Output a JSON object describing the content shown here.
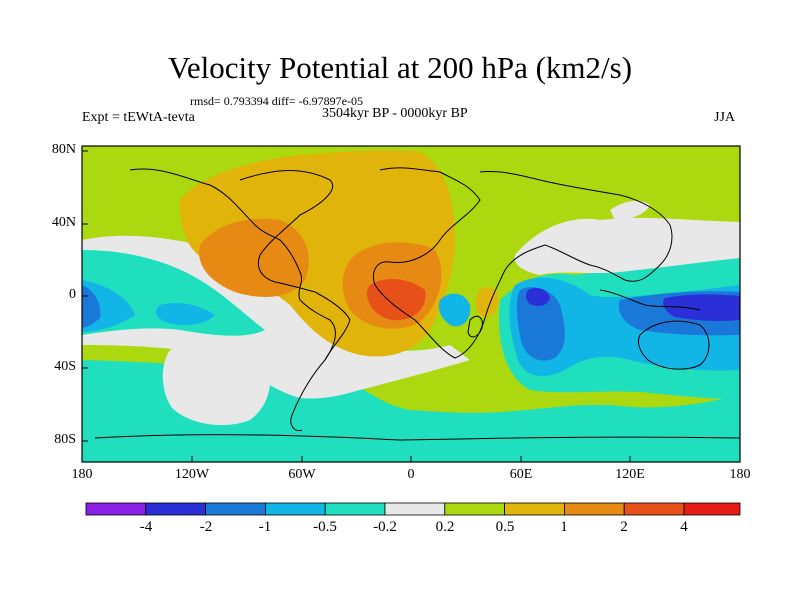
{
  "title": "Velocity Potential at 200 hPa (km2/s)",
  "stats": "rmsd= 0.793394 diff= -6.97897e-05",
  "left_label": "Expt = tEWtA-tevta",
  "center_label": "3504kyr BP - 0000kyr BP",
  "right_label": "JJA",
  "lat_labels": [
    "80N",
    "40N",
    "0",
    "40S",
    "80S"
  ],
  "lon_labels": [
    "180",
    "120W",
    "60W",
    "0",
    "60E",
    "120E",
    "180"
  ],
  "colorbar": {
    "levels": [
      "-4",
      "-2",
      "-1",
      "-0.5",
      "-0.2",
      "0.2",
      "0.5",
      "1",
      "2",
      "4"
    ],
    "colors": [
      "#8a1fe6",
      "#2a2fd8",
      "#1a79d8",
      "#12b6e6",
      "#1fdfbf",
      "#e8e8e8",
      "#acd80f",
      "#e0b40a",
      "#e68a14",
      "#e8501a",
      "#e81a14"
    ]
  }
}
